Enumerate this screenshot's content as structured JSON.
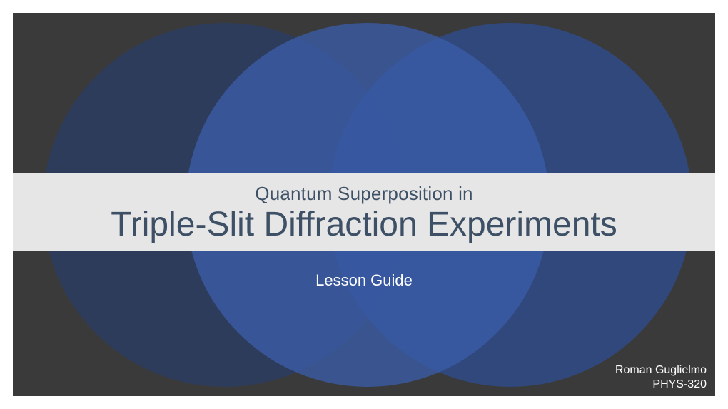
{
  "colors": {
    "page_bg": "#3a3a3a",
    "circle1": "#2b3d66",
    "circle2": "#3a5ca8",
    "circle3": "#2f4d8f",
    "band_bg": "#e6e6e6",
    "title_text": "#3e5066"
  },
  "text": {
    "pretitle": "Quantum Superposition in",
    "title": "Triple-Slit Diffraction Experiments",
    "subtitle": "Lesson Guide",
    "author_name": "Roman Guglielmo",
    "course_code": "PHYS-320"
  }
}
